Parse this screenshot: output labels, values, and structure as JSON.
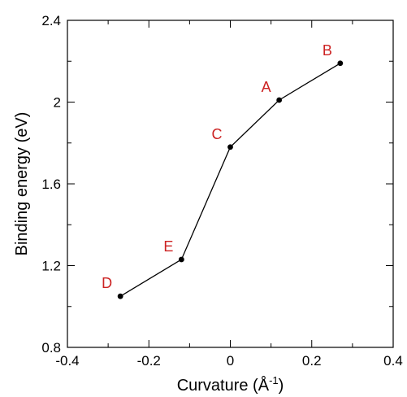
{
  "chart_data": {
    "type": "line",
    "title": "",
    "xlabel": "Curvature (Å",
    "xlabel_sup": "-1",
    "xlabel_end": ")",
    "ylabel": "Binding energy (eV)",
    "xlim": [
      -0.4,
      0.4
    ],
    "ylim": [
      0.8,
      2.4
    ],
    "x_ticks": [
      -0.4,
      -0.2,
      0,
      0.2,
      0.4
    ],
    "x_tick_labels": [
      "-0.4",
      "-0.2",
      "0",
      "0.2",
      "0.4"
    ],
    "y_ticks": [
      0.8,
      1.2,
      1.6,
      2.0,
      2.4
    ],
    "y_tick_labels": [
      "0.8",
      "1.2",
      "1.6",
      "2",
      "2.4"
    ],
    "grid": false,
    "series": [
      {
        "points": [
          {
            "label": "D",
            "x": -0.27,
            "y": 1.05
          },
          {
            "label": "E",
            "x": -0.12,
            "y": 1.23
          },
          {
            "label": "C",
            "x": 0.0,
            "y": 1.78
          },
          {
            "label": "A",
            "x": 0.12,
            "y": 2.01
          },
          {
            "label": "B",
            "x": 0.27,
            "y": 2.19
          }
        ],
        "line_color": "#000000",
        "marker_color": "#000000",
        "label_color": "#cc2222"
      }
    ]
  }
}
